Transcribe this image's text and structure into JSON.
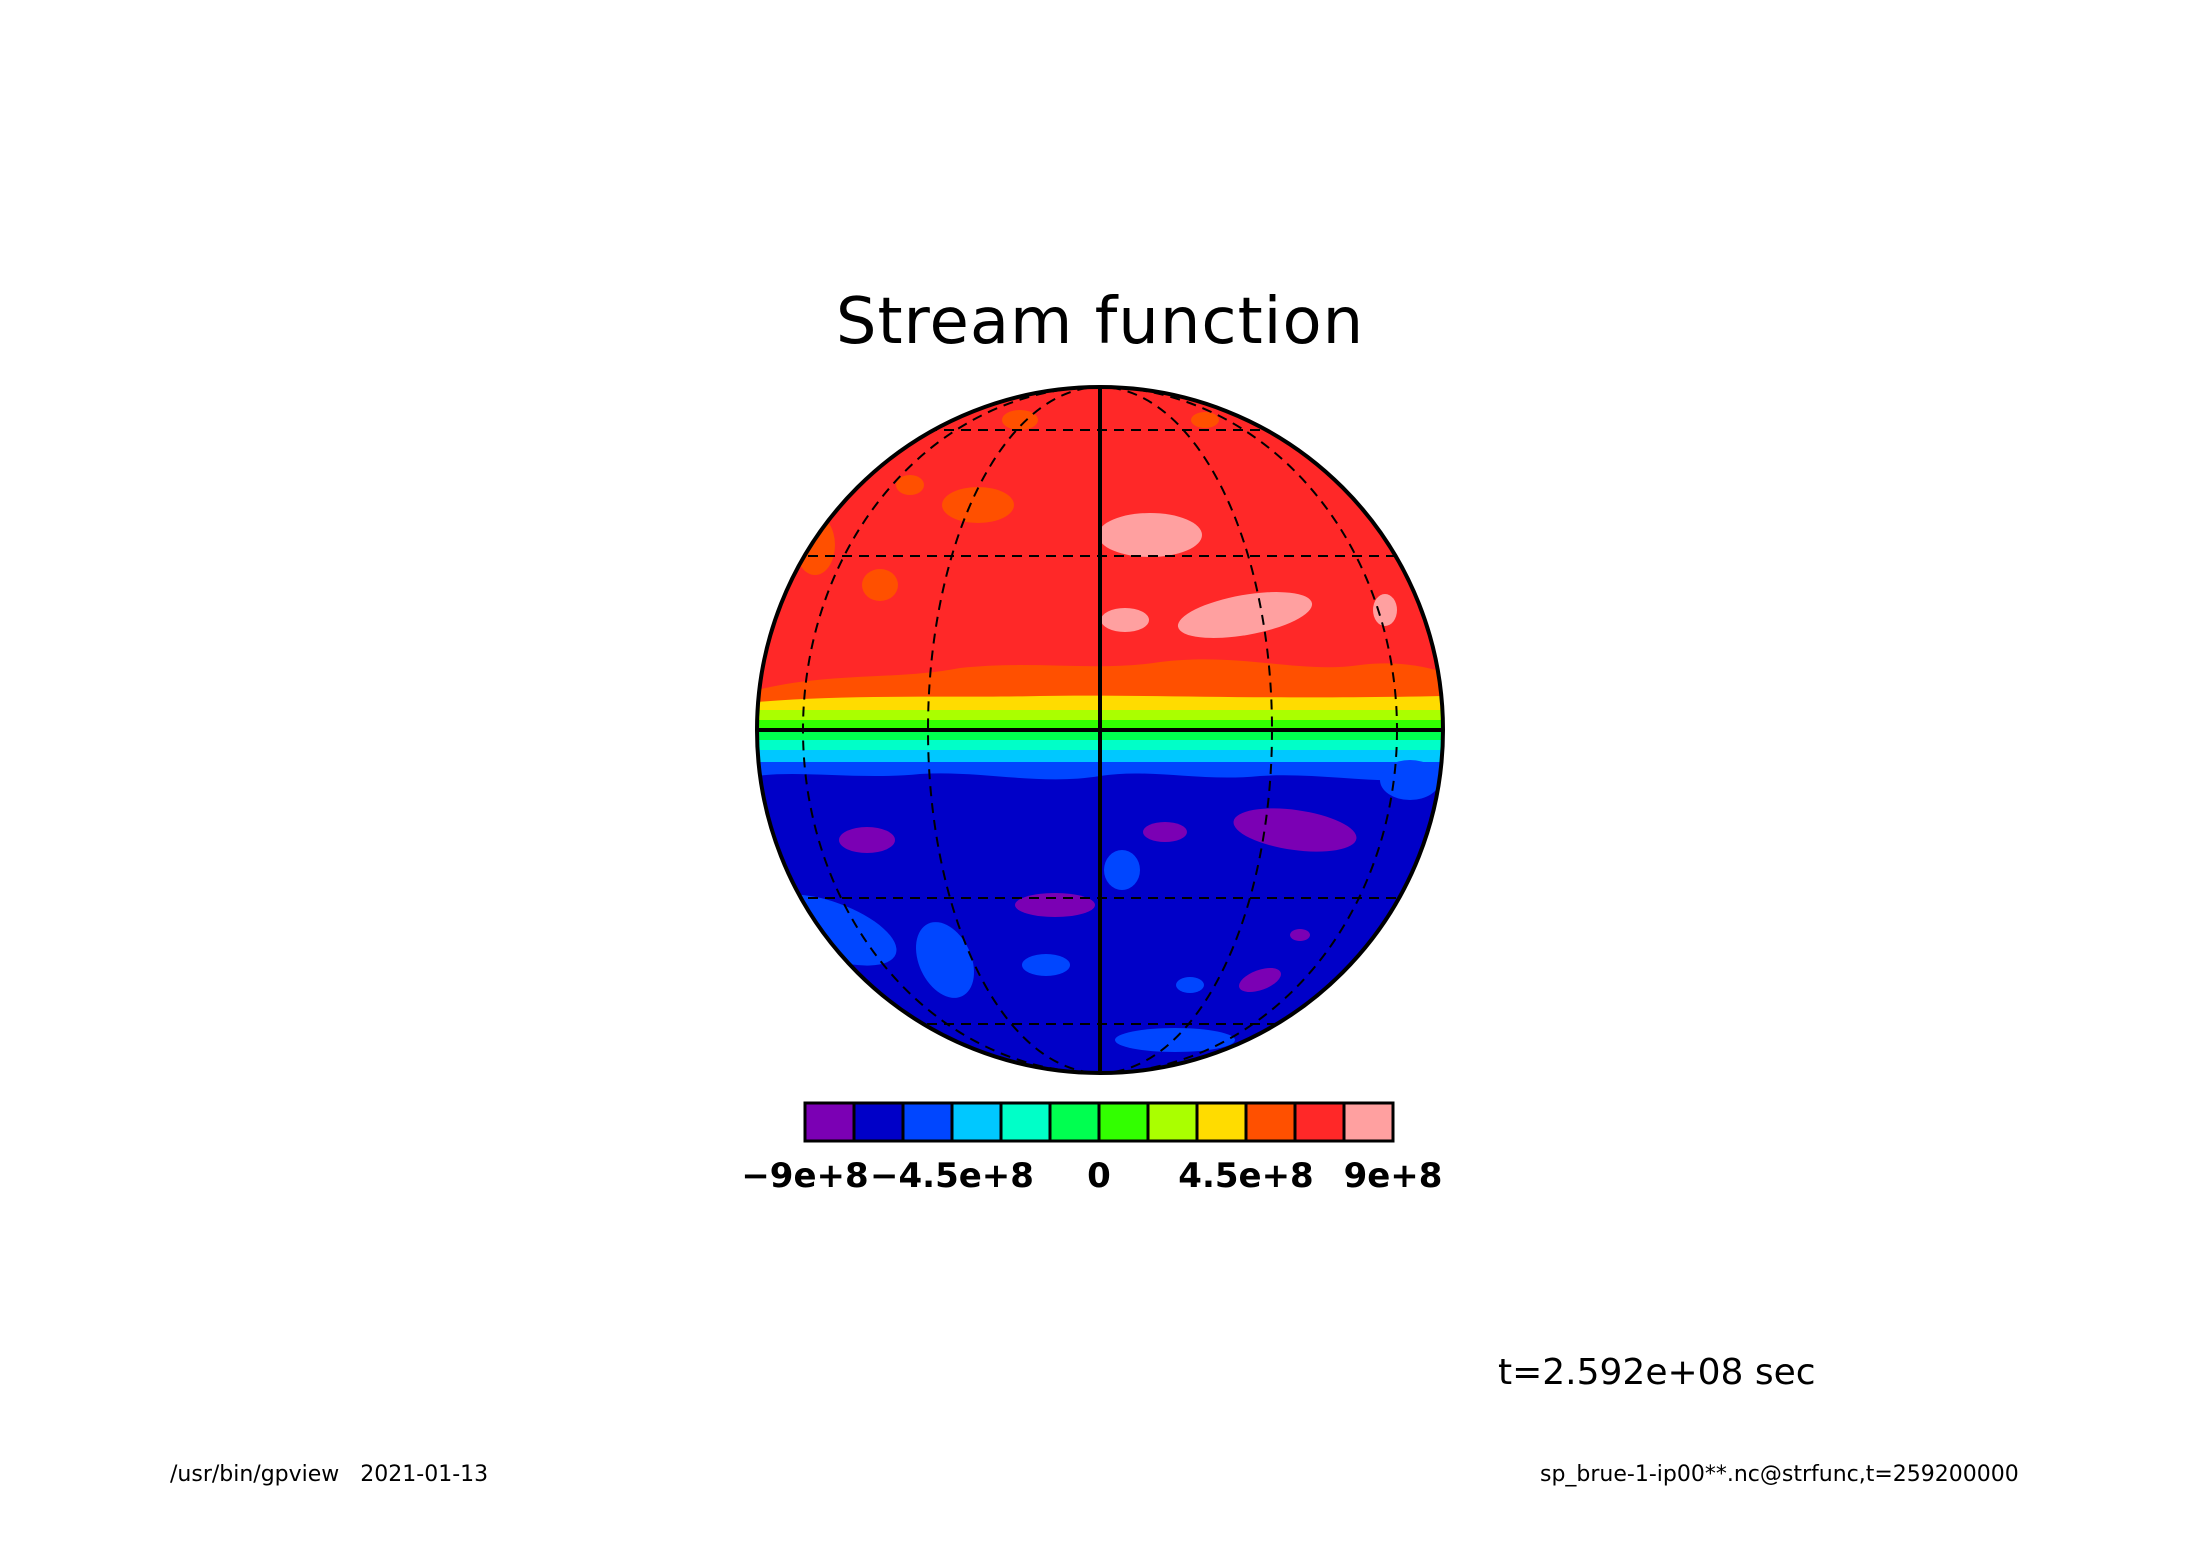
{
  "title": "Stream function",
  "time_label": "t=2.592e+08 sec",
  "footer": {
    "program": "/usr/bin/gpview",
    "date": "2021-01-13",
    "source": "sp_brue-1-ip00**.nc@strfunc,t=259200000"
  },
  "colorbar": {
    "colors": [
      "#7b00b4",
      "#0000c8",
      "#0046ff",
      "#00c8ff",
      "#00ffc8",
      "#00ff50",
      "#32ff00",
      "#aaff00",
      "#ffdc00",
      "#ff5000",
      "#ff2828",
      "#ffa0a0"
    ],
    "tick_labels": [
      "−9e+8",
      "−4.5e+8",
      "0",
      "4.5e+8",
      "9e+8"
    ]
  },
  "map": {
    "projection": "orthographic",
    "graticule": "dashed"
  }
}
